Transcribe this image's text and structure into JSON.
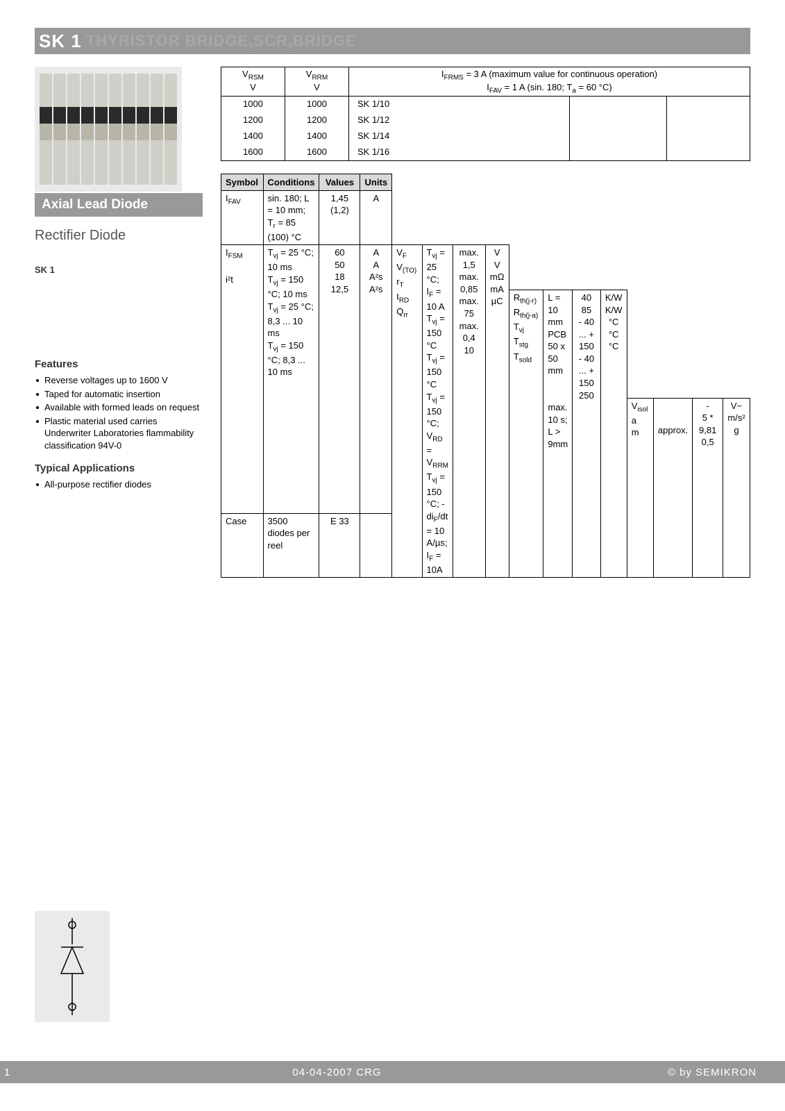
{
  "banner": {
    "title": "SK 1",
    "ghost": "THYRISTOR BRIDGE,SCR,BRIDGE"
  },
  "left": {
    "heading": "Axial Lead Diode",
    "subtitle": "Rectifier Diode",
    "model": "SK 1",
    "features_title": "Features",
    "features": [
      "Reverse voltages up to 1600 V",
      "Taped for automatic insertion",
      "Available with formed leads on request",
      "Plastic material used carries Underwriter Laboratories flammability classification 94V-0"
    ],
    "typapp_title": "Typical Applications",
    "typapp": [
      "All-purpose rectifier diodes"
    ]
  },
  "toptable": {
    "h_vrsm_sym": "V",
    "h_vrsm_sub": "RSM",
    "h_vrsm_unit": "V",
    "h_vrrm_sym": "V",
    "h_vrrm_sub": "RRM",
    "h_vrrm_unit": "V",
    "h_right_l1a": "I",
    "h_right_l1a_sub": "FRMS",
    "h_right_l1b": " = 3 A (maximum value for continuous operation)",
    "h_right_l2a": "I",
    "h_right_l2a_sub": "FAV",
    "h_right_l2b": " = 1 A (sin. 180; T",
    "h_right_l2c_sub": "a",
    "h_right_l2d": " = 60 °C)",
    "rows": [
      {
        "vrsm": "1000",
        "vrrm": "1000",
        "part": "SK 1/10"
      },
      {
        "vrsm": "1200",
        "vrrm": "1200",
        "part": "SK 1/12"
      },
      {
        "vrsm": "1400",
        "vrrm": "1400",
        "part": "SK 1/14"
      },
      {
        "vrsm": "1600",
        "vrrm": "1600",
        "part": "SK 1/16"
      }
    ]
  },
  "maintable": {
    "h_symbol": "Symbol",
    "h_conditions": "Conditions",
    "h_values": "Values",
    "h_units": "Units",
    "groups": [
      {
        "rows": [
          {
            "sym": "I<sub class='sub'>FAV</sub>",
            "cond": "sin. 180; L = 10 mm; T<sub class='sub'>r</sub> = 85 (100) °C",
            "val": "1,45 (1,2)",
            "unit": "A"
          }
        ]
      },
      {
        "rows": [
          {
            "sym": "I<sub class='sub'>FSM</sub>",
            "cond": "T<sub class='sub'>vj</sub> = 25 °C; 10 ms",
            "val": "60",
            "unit": "A"
          },
          {
            "sym": "",
            "cond": "T<sub class='sub'>vj</sub> = 150 °C; 10 ms",
            "val": "50",
            "unit": "A"
          },
          {
            "sym": "i²t",
            "cond": "T<sub class='sub'>vj</sub> = 25 °C; 8,3 ... 10 ms",
            "val": "18",
            "unit": "A²s"
          },
          {
            "sym": "",
            "cond": "T<sub class='sub'>vj</sub> = 150 °C; 8,3 ... 10 ms",
            "val": "12,5",
            "unit": "A²s"
          }
        ]
      },
      {
        "rows": [
          {
            "sym": "V<sub class='sub'>F</sub>",
            "cond": "T<sub class='sub'>vj</sub> = 25 °C; I<sub class='sub'>F</sub> = 10 A",
            "val": "max. 1,5",
            "unit": "V"
          },
          {
            "sym": "V<sub class='sub'>(TO)</sub>",
            "cond": "T<sub class='sub'>vj</sub> = 150 °C",
            "val": "max. 0,85",
            "unit": "V"
          },
          {
            "sym": "r<sub class='sub'>T</sub>",
            "cond": "T<sub class='sub'>vj</sub> = 150 °C",
            "val": "max. 75",
            "unit": "mΩ"
          },
          {
            "sym": "I<sub class='sub'>RD</sub>",
            "cond": "T<sub class='sub'>vj</sub> = 150 °C; V<sub class='sub'>RD</sub> = V<sub class='sub'>RRM</sub>",
            "val": "max. 0,4",
            "unit": "mA"
          },
          {
            "sym": "Q<sub class='sub'>rr</sub>",
            "cond": "T<sub class='sub'>vj</sub> = 150 °C; - di<sub class='sub'>F</sub>/dt = 10 A/µs; I<sub class='sub'>F</sub> = 10A",
            "val": "10",
            "unit": "µC"
          }
        ]
      },
      {
        "rows": [
          {
            "sym": "R<sub class='sub'>th(j-r)</sub>",
            "cond": "L = 10 mm",
            "val": "40",
            "unit": "K/W"
          },
          {
            "sym": "R<sub class='sub'>th(j-a)</sub>",
            "cond": "PCB 50 x 50 mm",
            "val": "85",
            "unit": "K/W"
          },
          {
            "sym": "T<sub class='sub'>vj</sub>",
            "cond": "",
            "val": "- 40 ... + 150",
            "unit": "°C"
          },
          {
            "sym": "T<sub class='sub'>stg</sub>",
            "cond": "",
            "val": "- 40 ... + 150",
            "unit": "°C"
          },
          {
            "sym": "T<sub class='sub'>sold</sub>",
            "cond": "max. 10 s; L > 9mm",
            "val": "250",
            "unit": "°C"
          }
        ]
      },
      {
        "rows": [
          {
            "sym": "V<sub class='sub'>isol</sub>",
            "cond": "",
            "val": "-",
            "unit": "V~"
          },
          {
            "sym": "a",
            "cond": "",
            "val": "5 * 9,81",
            "unit": "m/s²"
          },
          {
            "sym": "m",
            "cond": "approx.",
            "val": "0,5",
            "unit": "g"
          }
        ]
      },
      {
        "rows": [
          {
            "sym": "Case",
            "cond": "3500 diodes per reel",
            "val": "E 33",
            "unit": "",
            "pad": true
          }
        ]
      }
    ]
  },
  "footer": {
    "page": "1",
    "date": "04-04-2007  CRG",
    "copyright": "© by SEMIKRON"
  },
  "colors": {
    "banner_bg": "#999999",
    "banner_text": "#ffffff",
    "th_bg": "#d9d9d9"
  }
}
